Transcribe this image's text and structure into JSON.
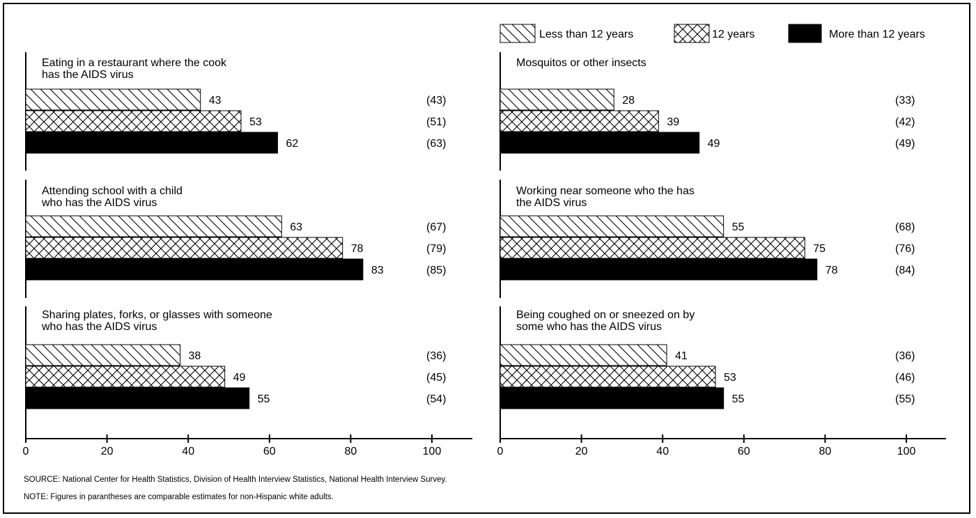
{
  "legend": [
    {
      "key": "less12",
      "label": "Less than 12 years",
      "pattern": "diag"
    },
    {
      "key": "eq12",
      "label": "12 years",
      "pattern": "cross"
    },
    {
      "key": "more12",
      "label": "More than 12 years",
      "pattern": "solid"
    }
  ],
  "x_ticks": [
    "0",
    "20",
    "40",
    "60",
    "80",
    "100"
  ],
  "chart_data": [
    {
      "type": "bar",
      "orientation": "horizontal",
      "panel_title": [
        "Eating in a restaurant where the cook",
        "has the AIDS virus"
      ],
      "series": [
        "less12",
        "eq12",
        "more12"
      ],
      "values": [
        43,
        53,
        62
      ],
      "value_labels": [
        "43",
        "53",
        "62"
      ],
      "comparison_labels": [
        "(43)",
        "(51)",
        "(63)"
      ],
      "xlim": [
        0,
        100
      ]
    },
    {
      "type": "bar",
      "orientation": "horizontal",
      "panel_title": [
        "Attending school with a child",
        "who has the AIDS virus"
      ],
      "series": [
        "less12",
        "eq12",
        "more12"
      ],
      "values": [
        63,
        78,
        83
      ],
      "value_labels": [
        "63",
        "78",
        "83"
      ],
      "comparison_labels": [
        "(67)",
        "(79)",
        "(85)"
      ],
      "xlim": [
        0,
        100
      ]
    },
    {
      "type": "bar",
      "orientation": "horizontal",
      "panel_title": [
        "Sharing plates, forks, or glasses with someone",
        "who has the AIDS virus"
      ],
      "series": [
        "less12",
        "eq12",
        "more12"
      ],
      "values": [
        38,
        49,
        55
      ],
      "value_labels": [
        "38",
        "49",
        "55"
      ],
      "comparison_labels": [
        "(36)",
        "(45)",
        "(54)"
      ],
      "xlim": [
        0,
        100
      ]
    },
    {
      "type": "bar",
      "orientation": "horizontal",
      "panel_title": [
        "Mosquitos or other insects"
      ],
      "series": [
        "less12",
        "eq12",
        "more12"
      ],
      "values": [
        28,
        39,
        49
      ],
      "value_labels": [
        "28",
        "39",
        "49"
      ],
      "comparison_labels": [
        "(33)",
        "(42)",
        "(49)"
      ],
      "xlim": [
        0,
        100
      ]
    },
    {
      "type": "bar",
      "orientation": "horizontal",
      "panel_title": [
        "Working near someone who the has",
        "the AIDS virus"
      ],
      "series": [
        "less12",
        "eq12",
        "more12"
      ],
      "values": [
        55,
        75,
        78
      ],
      "value_labels": [
        "55",
        "75",
        "78"
      ],
      "comparison_labels": [
        "(68)",
        "(76)",
        "(84)"
      ],
      "xlim": [
        0,
        100
      ]
    },
    {
      "type": "bar",
      "orientation": "horizontal",
      "panel_title": [
        "Being coughed on or sneezed on by",
        "some who has the AIDS virus"
      ],
      "series": [
        "less12",
        "eq12",
        "more12"
      ],
      "values": [
        41,
        53,
        55
      ],
      "value_labels": [
        "41",
        "53",
        "55"
      ],
      "comparison_labels": [
        "(36)",
        "(46)",
        "(55)"
      ],
      "xlim": [
        0,
        100
      ]
    }
  ],
  "footnotes": {
    "source": "SOURCE: National Center for Health Statistics, Division of Health Interview Statistics, National Health Interview Survey.",
    "note": "NOTE: Figures in parantheses are comparable estimates for non-Hispanic white adults."
  }
}
